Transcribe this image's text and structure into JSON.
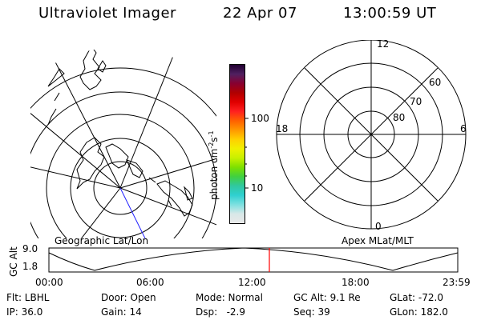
{
  "header": {
    "title": "Ultraviolet Imager",
    "date": "22 Apr 07",
    "time": "13:00:59 UT"
  },
  "left_map": {
    "label": "Geographic Lat/Lon"
  },
  "colorbar": {
    "unit_label": "photon cm",
    "unit_exp1": "-2",
    "unit_mid": "s",
    "unit_exp2": "-1",
    "ticks": [
      "100",
      "10"
    ],
    "colors": [
      "#e9e9e9",
      "#d8e8e8",
      "#7de0e0",
      "#2fd0d0",
      "#30c8a0",
      "#40d040",
      "#7de000",
      "#c8f000",
      "#f0f000",
      "#ffd000",
      "#ff9800",
      "#ff6000",
      "#ff2020",
      "#e00000",
      "#b00000",
      "#880030",
      "#502060",
      "#200030"
    ]
  },
  "right_map": {
    "label": "Apex MLat/MLT",
    "mlt_labels": {
      "top": "12",
      "left": "18",
      "right": "6",
      "bottom": "0"
    },
    "lat_labels": [
      "60",
      "70",
      "80"
    ]
  },
  "altitude_plot": {
    "ylabel": "GC Alt",
    "y_ticks": [
      "9.0",
      "1.8"
    ],
    "x_ticks": [
      "00:00",
      "06:00",
      "12:00",
      "18:00",
      "23:59"
    ]
  },
  "info": {
    "flt": "Flt: LBHL",
    "door": "Door: Open",
    "mode": "Mode: Normal",
    "gc_alt": "GC Alt: 9.1 Re",
    "glat": "GLat: -72.0",
    "ip": "IP: 36.0",
    "gain": "Gain: 14",
    "dsp": "Dsp:   -2.9",
    "seq": "Seq: 39",
    "glon": "GLon: 182.0"
  }
}
